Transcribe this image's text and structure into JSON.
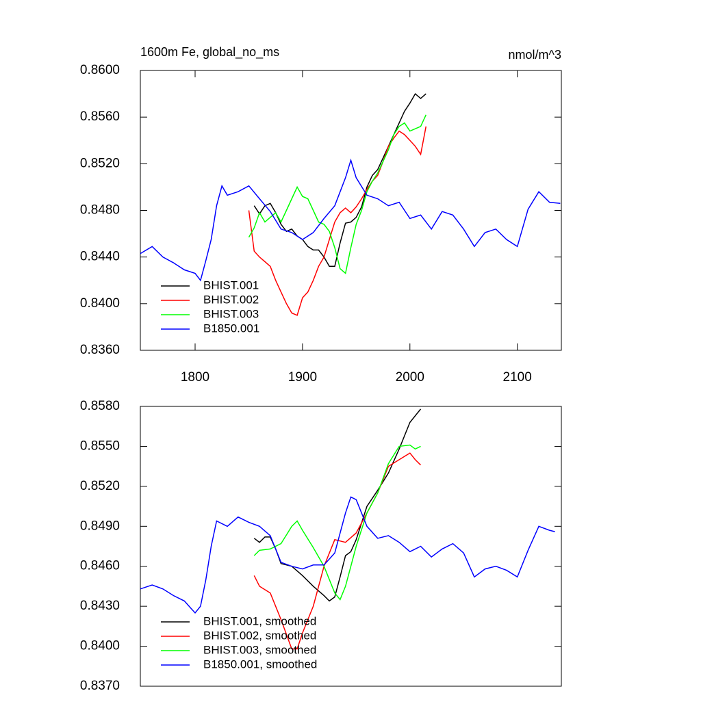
{
  "chart_data": [
    {
      "type": "line",
      "title": "1600m Fe, global_no_ms",
      "units": "nmol/m^3",
      "xlim": [
        1749,
        2141
      ],
      "xticks": [
        1800,
        1900,
        2000,
        2100
      ],
      "ylim": [
        0.836,
        0.86
      ],
      "yticks": [
        {
          "value": 0.836,
          "label": "0.8360"
        },
        {
          "value": 0.84,
          "label": "0.8400"
        },
        {
          "value": 0.844,
          "label": "0.8440"
        },
        {
          "value": 0.848,
          "label": "0.8480"
        },
        {
          "value": 0.852,
          "label": "0.8520"
        },
        {
          "value": 0.856,
          "label": "0.8560"
        },
        {
          "value": 0.86,
          "label": "0.8600"
        }
      ],
      "legend": "lower left",
      "series": [
        {
          "name": "BHIST.001",
          "color": "#000000",
          "x": [
            1855,
            1860,
            1865,
            1870,
            1875,
            1880,
            1885,
            1890,
            1895,
            1900,
            1905,
            1910,
            1915,
            1920,
            1925,
            1930,
            1935,
            1940,
            1945,
            1950,
            1955,
            1960,
            1965,
            1970,
            1975,
            1980,
            1985,
            1990,
            1995,
            2000,
            2005,
            2010,
            2015
          ],
          "values": [
            0.8484,
            0.8477,
            0.8484,
            0.8486,
            0.8478,
            0.8468,
            0.8462,
            0.8464,
            0.8458,
            0.8455,
            0.8449,
            0.8446,
            0.8446,
            0.844,
            0.8432,
            0.8432,
            0.8452,
            0.8469,
            0.847,
            0.8474,
            0.8483,
            0.85,
            0.851,
            0.8515,
            0.8525,
            0.8535,
            0.8545,
            0.8555,
            0.8565,
            0.8572,
            0.858,
            0.8576,
            0.858
          ]
        },
        {
          "name": "BHIST.002",
          "color": "#ff0000",
          "x": [
            1850,
            1855,
            1860,
            1865,
            1870,
            1875,
            1880,
            1885,
            1890,
            1895,
            1900,
            1905,
            1910,
            1915,
            1920,
            1925,
            1930,
            1935,
            1940,
            1945,
            1950,
            1955,
            1960,
            1965,
            1970,
            1975,
            1980,
            1985,
            1990,
            1995,
            2000,
            2005,
            2010,
            2015
          ],
          "values": [
            0.848,
            0.8445,
            0.844,
            0.8436,
            0.8432,
            0.842,
            0.841,
            0.84,
            0.8392,
            0.839,
            0.8405,
            0.841,
            0.842,
            0.8432,
            0.844,
            0.8455,
            0.847,
            0.8478,
            0.8482,
            0.8478,
            0.8483,
            0.849,
            0.8498,
            0.8505,
            0.851,
            0.8522,
            0.8535,
            0.8542,
            0.8548,
            0.8545,
            0.854,
            0.8535,
            0.8528,
            0.8552
          ]
        },
        {
          "name": "BHIST.003",
          "color": "#00ff00",
          "x": [
            1850,
            1855,
            1860,
            1865,
            1870,
            1875,
            1880,
            1885,
            1890,
            1895,
            1900,
            1905,
            1910,
            1915,
            1920,
            1925,
            1930,
            1935,
            1940,
            1945,
            1950,
            1955,
            1960,
            1965,
            1970,
            1975,
            1980,
            1985,
            1990,
            1995,
            2000,
            2005,
            2010,
            2015
          ],
          "values": [
            0.8457,
            0.8465,
            0.8478,
            0.847,
            0.8474,
            0.8478,
            0.847,
            0.848,
            0.849,
            0.85,
            0.8492,
            0.849,
            0.848,
            0.847,
            0.8468,
            0.8462,
            0.8448,
            0.843,
            0.8426,
            0.8448,
            0.8468,
            0.848,
            0.8496,
            0.8505,
            0.8512,
            0.8522,
            0.8532,
            0.8545,
            0.8552,
            0.8555,
            0.8548,
            0.855,
            0.8552,
            0.8562
          ]
        },
        {
          "name": "B1850.001",
          "color": "#0000ff",
          "x": [
            1749,
            1760,
            1770,
            1780,
            1790,
            1800,
            1805,
            1810,
            1815,
            1820,
            1825,
            1830,
            1840,
            1850,
            1860,
            1870,
            1880,
            1890,
            1900,
            1910,
            1920,
            1930,
            1940,
            1945,
            1950,
            1960,
            1970,
            1980,
            1990,
            2000,
            2010,
            2020,
            2030,
            2040,
            2050,
            2060,
            2070,
            2080,
            2090,
            2100,
            2110,
            2120,
            2130,
            2140
          ],
          "values": [
            0.8443,
            0.8449,
            0.844,
            0.8435,
            0.8429,
            0.8426,
            0.842,
            0.8437,
            0.8455,
            0.8484,
            0.8501,
            0.8493,
            0.8496,
            0.8501,
            0.849,
            0.8479,
            0.8464,
            0.8461,
            0.8455,
            0.8461,
            0.8473,
            0.8484,
            0.8508,
            0.8523,
            0.8508,
            0.8493,
            0.849,
            0.8484,
            0.8487,
            0.8473,
            0.8476,
            0.8464,
            0.8479,
            0.8476,
            0.8464,
            0.8449,
            0.8461,
            0.8464,
            0.8455,
            0.8449,
            0.8481,
            0.8496,
            0.8487,
            0.8486
          ]
        }
      ]
    },
    {
      "type": "line",
      "xlim": [
        1749,
        2141
      ],
      "ylim": [
        0.837,
        0.858
      ],
      "yticks": [
        {
          "value": 0.837,
          "label": "0.8370"
        },
        {
          "value": 0.84,
          "label": "0.8400"
        },
        {
          "value": 0.843,
          "label": "0.8430"
        },
        {
          "value": 0.846,
          "label": "0.8460"
        },
        {
          "value": 0.849,
          "label": "0.8490"
        },
        {
          "value": 0.852,
          "label": "0.8520"
        },
        {
          "value": 0.855,
          "label": "0.8550"
        },
        {
          "value": 0.858,
          "label": "0.8580"
        }
      ],
      "legend": "lower left",
      "series": [
        {
          "name": "BHIST.001, smoothed",
          "color": "#000000",
          "x": [
            1855,
            1860,
            1865,
            1870,
            1875,
            1880,
            1890,
            1900,
            1910,
            1920,
            1925,
            1930,
            1935,
            1940,
            1945,
            1950,
            1960,
            1970,
            1980,
            1990,
            2000,
            2010
          ],
          "values": [
            0.8481,
            0.8478,
            0.8482,
            0.8482,
            0.8473,
            0.8462,
            0.846,
            0.8453,
            0.8445,
            0.8438,
            0.8434,
            0.8437,
            0.8452,
            0.8468,
            0.8471,
            0.848,
            0.8505,
            0.8517,
            0.853,
            0.8548,
            0.8568,
            0.8578
          ]
        },
        {
          "name": "BHIST.002, smoothed",
          "color": "#ff0000",
          "x": [
            1855,
            1860,
            1870,
            1880,
            1890,
            1895,
            1900,
            1910,
            1920,
            1930,
            1940,
            1950,
            1960,
            1970,
            1980,
            1990,
            2000,
            2005,
            2010
          ],
          "values": [
            0.8453,
            0.8445,
            0.844,
            0.842,
            0.8398,
            0.8398,
            0.841,
            0.843,
            0.846,
            0.848,
            0.8478,
            0.8485,
            0.85,
            0.8515,
            0.8535,
            0.854,
            0.8545,
            0.854,
            0.8536
          ]
        },
        {
          "name": "BHIST.003, smoothed",
          "color": "#00ff00",
          "x": [
            1855,
            1860,
            1870,
            1880,
            1890,
            1895,
            1900,
            1910,
            1920,
            1930,
            1935,
            1940,
            1950,
            1960,
            1970,
            1980,
            1990,
            2000,
            2005,
            2010
          ],
          "values": [
            0.8468,
            0.8472,
            0.8473,
            0.8477,
            0.849,
            0.8494,
            0.8487,
            0.8474,
            0.846,
            0.844,
            0.8435,
            0.8445,
            0.8475,
            0.85,
            0.8515,
            0.8537,
            0.855,
            0.8551,
            0.8548,
            0.855
          ]
        },
        {
          "name": "B1850.001, smoothed",
          "color": "#0000ff",
          "x": [
            1749,
            1760,
            1770,
            1780,
            1790,
            1800,
            1805,
            1810,
            1815,
            1820,
            1830,
            1840,
            1850,
            1860,
            1870,
            1880,
            1890,
            1900,
            1910,
            1920,
            1930,
            1940,
            1945,
            1950,
            1960,
            1970,
            1980,
            1990,
            2000,
            2010,
            2020,
            2030,
            2040,
            2050,
            2060,
            2070,
            2080,
            2090,
            2100,
            2110,
            2120,
            2130,
            2135
          ],
          "values": [
            0.8443,
            0.8446,
            0.8443,
            0.8438,
            0.8434,
            0.8425,
            0.843,
            0.845,
            0.8475,
            0.8494,
            0.849,
            0.8497,
            0.8493,
            0.849,
            0.8483,
            0.8463,
            0.846,
            0.8458,
            0.8461,
            0.8461,
            0.847,
            0.85,
            0.8512,
            0.851,
            0.849,
            0.8481,
            0.8483,
            0.8478,
            0.8471,
            0.8475,
            0.8467,
            0.8473,
            0.8477,
            0.847,
            0.8452,
            0.8458,
            0.846,
            0.8457,
            0.8452,
            0.8472,
            0.849,
            0.8487,
            0.8486
          ]
        }
      ]
    }
  ]
}
